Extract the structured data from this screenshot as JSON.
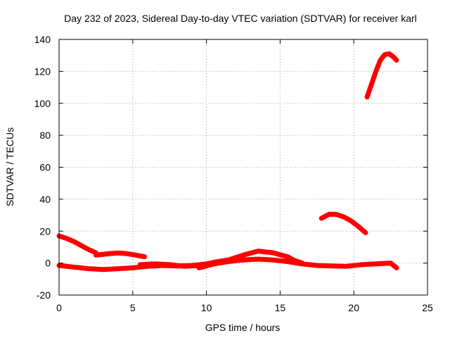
{
  "chart_data": {
    "type": "line",
    "title": "Day 232 of 2023, Sidereal Day-to-day VTEC variation (SDTVAR) for receiver karl",
    "xlabel": "GPS time / hours",
    "ylabel": "SDTVAR / TECUs",
    "xlim": [
      0,
      25
    ],
    "ylim": [
      -20,
      140
    ],
    "xticks": [
      "0",
      "5",
      "10",
      "15",
      "20",
      "25"
    ],
    "yticks": [
      "-20",
      "0",
      "20",
      "40",
      "60",
      "80",
      "100",
      "120",
      "140"
    ],
    "grid": true,
    "color": "#ff0000",
    "series": [
      {
        "name": "arc-1",
        "x": [
          0,
          0.5,
          1,
          1.5,
          2,
          2.5
        ],
        "y": [
          17,
          15.5,
          13.5,
          11,
          8.5,
          6.5
        ]
      },
      {
        "name": "arc-2",
        "x": [
          2.5,
          3,
          3.5,
          4,
          4.5,
          5,
          5.5,
          5.8
        ],
        "y": [
          5,
          5.5,
          6,
          6.3,
          6,
          5.3,
          4.5,
          4
        ]
      },
      {
        "name": "arc-3",
        "x": [
          0,
          1,
          2,
          3,
          4,
          5,
          6,
          7,
          8,
          9,
          10
        ],
        "y": [
          -1.5,
          -2.5,
          -3.5,
          -4,
          -3.5,
          -3,
          -2,
          -1.5,
          -1.8,
          -1.5,
          -0.5
        ]
      },
      {
        "name": "arc-4",
        "x": [
          5.5,
          6.5,
          7.5,
          8.5,
          9.5,
          10.5,
          11.5,
          12.5,
          13.5,
          14.5,
          15.5,
          16,
          16.5
        ],
        "y": [
          -1,
          -0.5,
          -1,
          -2,
          -1.5,
          0.5,
          2,
          5,
          7.5,
          6.5,
          4,
          1.5,
          0
        ]
      },
      {
        "name": "arc-5",
        "x": [
          9.5,
          10.5,
          11.5,
          12.5,
          13.5,
          14.5,
          15.5,
          16.5,
          17.5,
          18.5,
          19.5,
          20.5,
          21.5,
          22.5,
          22.9
        ],
        "y": [
          -3,
          -0.5,
          1,
          2,
          2.5,
          2,
          1,
          -0.5,
          -1.5,
          -1.8,
          -2,
          -1,
          -0.5,
          0,
          -3
        ]
      },
      {
        "name": "arc-6",
        "x": [
          17.8,
          18.3,
          18.8,
          19.3,
          19.8,
          20.3,
          20.8
        ],
        "y": [
          28,
          30.5,
          30.5,
          29,
          26.5,
          23,
          19
        ]
      },
      {
        "name": "arc-7",
        "x": [
          20.9,
          21.2,
          21.5,
          21.8,
          22.1,
          22.4,
          22.7,
          22.9
        ],
        "y": [
          104,
          112,
          120,
          127,
          130.5,
          131,
          129,
          127
        ]
      }
    ]
  }
}
